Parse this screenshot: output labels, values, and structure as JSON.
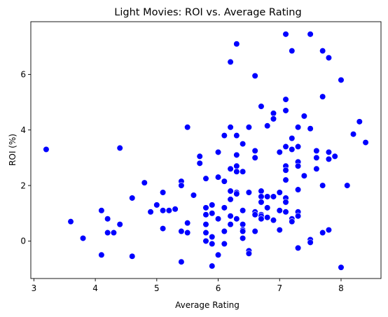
{
  "chart_data": {
    "type": "scatter",
    "title": "Light Movies: ROI vs. Average Rating",
    "xlabel": "Average Rating",
    "ylabel": "ROI (%)",
    "xlim": [
      2.95,
      8.65
    ],
    "ylim": [
      -1.35,
      7.9
    ],
    "xticks": [
      3,
      4,
      5,
      6,
      7,
      8
    ],
    "yticks": [
      0,
      2,
      4,
      6
    ],
    "grid": false,
    "legend": "none",
    "marker_color": "#0000ff",
    "x": [
      3.2,
      3.6,
      3.8,
      4.1,
      4.1,
      4.2,
      4.2,
      4.3,
      4.4,
      4.4,
      4.6,
      4.6,
      4.8,
      4.9,
      5.0,
      5.1,
      5.1,
      5.1,
      5.2,
      5.3,
      5.4,
      5.4,
      5.4,
      5.4,
      5.5,
      5.5,
      5.5,
      5.6,
      5.7,
      5.7,
      5.8,
      5.8,
      5.8,
      5.8,
      5.8,
      5.8,
      5.9,
      5.9,
      5.9,
      5.9,
      5.9,
      6.0,
      6.0,
      6.0,
      6.0,
      6.1,
      6.1,
      6.1,
      6.1,
      6.1,
      6.2,
      6.2,
      6.2,
      6.2,
      6.2,
      6.2,
      6.2,
      6.3,
      6.3,
      6.3,
      6.3,
      6.3,
      6.3,
      6.3,
      6.3,
      6.4,
      6.4,
      6.4,
      6.4,
      6.4,
      6.4,
      6.4,
      6.5,
      6.5,
      6.5,
      6.5,
      6.6,
      6.6,
      6.6,
      6.6,
      6.6,
      6.6,
      6.7,
      6.7,
      6.7,
      6.7,
      6.7,
      6.7,
      6.7,
      6.8,
      6.8,
      6.8,
      6.8,
      6.9,
      6.9,
      6.9,
      6.9,
      7.0,
      7.0,
      7.0,
      7.0,
      7.1,
      7.1,
      7.1,
      7.1,
      7.1,
      7.1,
      7.1,
      7.1,
      7.1,
      7.1,
      7.2,
      7.2,
      7.2,
      7.2,
      7.2,
      7.3,
      7.3,
      7.3,
      7.3,
      7.3,
      7.3,
      7.3,
      7.3,
      7.4,
      7.4,
      7.5,
      7.5,
      7.5,
      7.5,
      7.6,
      7.6,
      7.6,
      7.7,
      7.7,
      7.7,
      7.7,
      7.8,
      7.8,
      7.8,
      7.8,
      7.9,
      8.0,
      8.0,
      8.1,
      8.2,
      8.3,
      8.4
    ],
    "y": [
      3.3,
      0.7,
      0.1,
      1.1,
      -0.5,
      0.3,
      0.8,
      0.3,
      3.35,
      0.6,
      1.55,
      -0.55,
      2.1,
      1.05,
      1.3,
      1.75,
      1.1,
      0.45,
      1.1,
      1.15,
      2.15,
      2.0,
      0.35,
      -0.75,
      4.1,
      0.65,
      0.3,
      1.65,
      3.05,
      2.8,
      2.25,
      1.2,
      0.95,
      0.6,
      0.3,
      0.0,
      1.3,
      1.0,
      0.15,
      -0.1,
      -0.9,
      3.2,
      2.3,
      0.8,
      -0.5,
      3.8,
      2.15,
      1.2,
      0.35,
      -0.1,
      6.45,
      4.1,
      2.6,
      1.8,
      1.5,
      0.9,
      0.6,
      7.1,
      3.8,
      3.1,
      2.7,
      2.5,
      1.75,
      1.7,
      0.8,
      3.5,
      2.5,
      1.1,
      0.6,
      0.4,
      0.35,
      0.1,
      4.1,
      1.75,
      -0.35,
      -0.45,
      5.95,
      3.25,
      3.0,
      1.05,
      0.95,
      0.35,
      4.85,
      1.8,
      1.6,
      1.4,
      0.95,
      0.9,
      0.8,
      4.15,
      1.6,
      1.2,
      0.85,
      4.6,
      4.4,
      1.6,
      0.75,
      3.2,
      1.75,
      1.1,
      0.4,
      7.45,
      5.1,
      4.7,
      3.4,
      2.7,
      2.55,
      2.2,
      1.55,
      1.4,
      1.05,
      6.85,
      3.7,
      3.3,
      0.8,
      0.7,
      4.1,
      3.4,
      2.85,
      2.7,
      1.85,
      1.05,
      0.9,
      -0.25,
      4.5,
      2.35,
      7.45,
      4.05,
      0.05,
      -0.05,
      3.25,
      3.0,
      2.6,
      6.85,
      5.2,
      2.0,
      0.3,
      6.6,
      3.2,
      2.95,
      0.4,
      3.05,
      5.8,
      -0.95,
      2.0,
      3.85,
      4.3,
      3.55
    ]
  }
}
